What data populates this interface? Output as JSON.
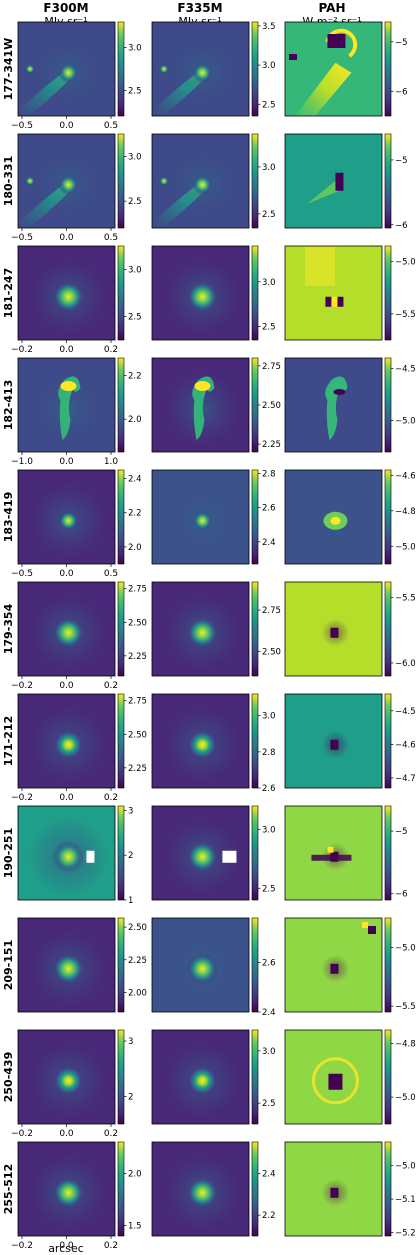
{
  "chart_data": {
    "type": "heatmap",
    "columns": [
      {
        "title": "F300M",
        "unit": "MJy sr⁻¹",
        "cmap": "viridis"
      },
      {
        "title": "F335M",
        "unit": "MJy sr⁻¹",
        "cmap": "viridis"
      },
      {
        "title": "PAH",
        "unit": "W m⁻² sr⁻¹",
        "cmap": "viridis"
      }
    ],
    "xlabel": "arcsec",
    "rows": [
      {
        "label": "177-341W",
        "xticks": [
          "-0.5",
          "0.0",
          "0.5"
        ],
        "cbar": [
          {
            "min": 2.2,
            "max": 3.3,
            "ticks": [
              "2.5",
              "3.0"
            ]
          },
          {
            "min": 2.35,
            "max": 3.55,
            "ticks": [
              "2.5",
              "3.0",
              "3.5"
            ]
          },
          {
            "min": -6.5,
            "max": -4.6,
            "ticks": [
              "-6",
              "-5"
            ]
          }
        ]
      },
      {
        "label": "180-331",
        "xticks": [
          "-0.5",
          "0.0",
          "0.5"
        ],
        "cbar": [
          {
            "min": 2.2,
            "max": 3.25,
            "ticks": [
              "2.5",
              "3.0"
            ]
          },
          {
            "min": 2.35,
            "max": 3.35,
            "ticks": [
              "2.5",
              "3.0"
            ]
          },
          {
            "min": -6.05,
            "max": -4.6,
            "ticks": [
              "-6",
              "-5"
            ]
          }
        ]
      },
      {
        "label": "181-247",
        "xticks": [
          "-0.2",
          "0.0",
          "0.2"
        ],
        "cbar": [
          {
            "min": 2.25,
            "max": 3.25,
            "ticks": [
              "2.5",
              "3.0"
            ]
          },
          {
            "min": 2.35,
            "max": 3.4,
            "ticks": [
              "2.5",
              "3.0"
            ]
          },
          {
            "min": -5.75,
            "max": -4.85,
            "ticks": [
              "-5.5",
              "-5.0"
            ]
          }
        ]
      },
      {
        "label": "182-413",
        "xticks": [
          "-1.0",
          "0.0",
          "1.0"
        ],
        "cbar": [
          {
            "min": 1.85,
            "max": 2.28,
            "ticks": [
              "2.0",
              "2.2"
            ]
          },
          {
            "min": 2.2,
            "max": 2.8,
            "ticks": [
              "2.25",
              "2.50",
              "2.75"
            ]
          },
          {
            "min": -5.3,
            "max": -4.4,
            "ticks": [
              "-5.0",
              "-4.5"
            ]
          }
        ]
      },
      {
        "label": "183-419",
        "xticks": [
          "-0.5",
          "0.0",
          "0.5"
        ],
        "cbar": [
          {
            "min": 1.9,
            "max": 2.45,
            "ticks": [
              "2.0",
              "2.2",
              "2.4"
            ]
          },
          {
            "min": 2.27,
            "max": 2.82,
            "ticks": [
              "2.4",
              "2.6",
              "2.8"
            ]
          },
          {
            "min": -5.1,
            "max": -4.57,
            "ticks": [
              "-5.0",
              "-4.8",
              "-4.6"
            ]
          }
        ]
      },
      {
        "label": "179-354",
        "xticks": [
          "-0.2",
          "0.0",
          "0.2"
        ],
        "cbar": [
          {
            "min": 2.1,
            "max": 2.8,
            "ticks": [
              "2.25",
              "2.50",
              "2.75"
            ]
          },
          {
            "min": 2.35,
            "max": 2.92,
            "ticks": [
              "2.50",
              "2.75"
            ]
          },
          {
            "min": -6.1,
            "max": -5.38,
            "ticks": [
              "-6.0",
              "-5.5"
            ]
          }
        ]
      },
      {
        "label": "171-212",
        "xticks": [
          "-0.2",
          "0.0",
          "0.2"
        ],
        "cbar": [
          {
            "min": 2.1,
            "max": 2.8,
            "ticks": [
              "2.25",
              "2.50",
              "2.75"
            ]
          },
          {
            "min": 2.6,
            "max": 3.12,
            "ticks": [
              "2.6",
              "2.8",
              "3.0"
            ]
          },
          {
            "min": -4.73,
            "max": -4.45,
            "ticks": [
              "-4.7",
              "-4.6",
              "-4.5"
            ]
          }
        ]
      },
      {
        "label": "190-251",
        "xticks": [],
        "cbar": [
          {
            "min": 1,
            "max": 3.1,
            "ticks": [
              "1",
              "2",
              "3"
            ]
          },
          {
            "min": 2.4,
            "max": 3.2,
            "ticks": [
              "2.5",
              "3.0"
            ]
          },
          {
            "min": -6.1,
            "max": -4.6,
            "ticks": [
              "-6",
              "-5"
            ]
          }
        ]
      },
      {
        "label": "209-151",
        "xticks": [],
        "cbar": [
          {
            "min": 1.85,
            "max": 2.57,
            "ticks": [
              "2.00",
              "2.25",
              "2.50"
            ]
          },
          {
            "min": 2.4,
            "max": 2.78,
            "ticks": [
              "2.4",
              "2.6"
            ]
          },
          {
            "min": -5.55,
            "max": -4.75,
            "ticks": [
              "-5.5",
              "-5.0"
            ]
          }
        ]
      },
      {
        "label": "250-439",
        "xticks": [
          "-0.2",
          "0.0",
          "0.2"
        ],
        "cbar": [
          {
            "min": 1.5,
            "max": 3.2,
            "ticks": [
              "2",
              "3"
            ]
          },
          {
            "min": 2.3,
            "max": 3.2,
            "ticks": [
              "2.5",
              "3.0"
            ]
          },
          {
            "min": -5.1,
            "max": -4.75,
            "ticks": [
              "-5.0",
              "-4.8"
            ]
          }
        ]
      },
      {
        "label": "255-512",
        "xticks": [
          "-0.2",
          "0.0",
          "0.2"
        ],
        "cbar": [
          {
            "min": 1.4,
            "max": 2.3,
            "ticks": [
              "1.5",
              "2.0"
            ]
          },
          {
            "min": 2.1,
            "max": 2.55,
            "ticks": [
              "2.2",
              "2.4"
            ]
          },
          {
            "min": -5.21,
            "max": -4.93,
            "ticks": [
              "-5.2",
              "-5.1",
              "-5.0"
            ]
          }
        ]
      }
    ]
  }
}
